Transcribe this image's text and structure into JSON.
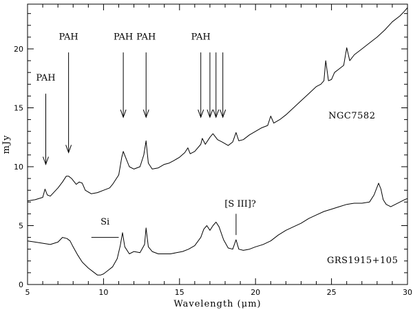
{
  "chart_data": {
    "type": "line",
    "xlabel": "Wavelength (μm)",
    "ylabel": "mJy",
    "xlim": [
      5,
      30
    ],
    "ylim": [
      0,
      23.8
    ],
    "xticks": [
      5,
      10,
      15,
      20,
      25,
      30
    ],
    "yticks": [
      0,
      5,
      10,
      15,
      20
    ],
    "grid": false,
    "series": [
      {
        "name": "NGC7582",
        "x": [
          5.0,
          5.5,
          6.0,
          6.15,
          6.3,
          6.5,
          7.0,
          7.3,
          7.55,
          7.7,
          7.9,
          8.2,
          8.4,
          8.6,
          8.8,
          9.2,
          9.6,
          10.0,
          10.4,
          10.6,
          11.0,
          11.2,
          11.3,
          11.45,
          11.7,
          12.0,
          12.4,
          12.65,
          12.8,
          12.95,
          13.2,
          13.6,
          14.0,
          14.3,
          14.6,
          15.0,
          15.35,
          15.55,
          15.7,
          16.0,
          16.4,
          16.5,
          16.7,
          17.0,
          17.2,
          17.5,
          17.8,
          18.2,
          18.5,
          18.72,
          18.9,
          19.2,
          19.6,
          20.0,
          20.4,
          20.8,
          21.0,
          21.2,
          21.6,
          22.0,
          22.5,
          23.0,
          23.5,
          24.0,
          24.3,
          24.5,
          24.62,
          24.8,
          25.0,
          25.2,
          25.5,
          25.8,
          26.0,
          26.2,
          26.5,
          27.0,
          27.5,
          28.0,
          28.5,
          29.0,
          29.5,
          29.8,
          30.0
        ],
        "y": [
          7.1,
          7.2,
          7.4,
          8.1,
          7.6,
          7.5,
          8.2,
          8.7,
          9.2,
          9.2,
          9.0,
          8.5,
          8.7,
          8.6,
          8.0,
          7.7,
          7.8,
          8.0,
          8.2,
          8.5,
          9.3,
          10.8,
          11.3,
          10.8,
          10.0,
          9.8,
          10.0,
          11.0,
          12.2,
          10.3,
          9.8,
          9.9,
          10.2,
          10.3,
          10.5,
          10.8,
          11.2,
          11.6,
          11.1,
          11.3,
          11.9,
          12.4,
          11.9,
          12.5,
          12.8,
          12.3,
          12.1,
          11.8,
          12.1,
          12.9,
          12.2,
          12.3,
          12.7,
          13.0,
          13.3,
          13.5,
          14.3,
          13.7,
          14.0,
          14.4,
          15.0,
          15.6,
          16.2,
          16.8,
          17.0,
          17.3,
          19.0,
          17.3,
          17.4,
          18.0,
          18.3,
          18.6,
          20.1,
          19.0,
          19.5,
          20.0,
          20.5,
          21.0,
          21.6,
          22.3,
          22.8,
          23.2,
          23.5
        ]
      },
      {
        "name": "GRS1915+105",
        "x": [
          5.0,
          5.5,
          6.0,
          6.5,
          7.0,
          7.3,
          7.6,
          7.8,
          8.0,
          8.3,
          8.6,
          9.0,
          9.3,
          9.6,
          9.8,
          10.0,
          10.3,
          10.6,
          10.9,
          11.1,
          11.25,
          11.4,
          11.7,
          12.0,
          12.4,
          12.7,
          12.8,
          12.95,
          13.2,
          13.6,
          14.0,
          14.4,
          14.8,
          15.2,
          15.6,
          16.0,
          16.4,
          16.6,
          16.8,
          17.0,
          17.2,
          17.4,
          17.6,
          17.9,
          18.2,
          18.5,
          18.72,
          18.9,
          19.2,
          19.6,
          20.0,
          20.5,
          21.0,
          21.5,
          22.0,
          22.5,
          23.0,
          23.5,
          24.0,
          24.5,
          25.0,
          25.5,
          26.0,
          26.5,
          27.0,
          27.5,
          27.8,
          28.1,
          28.25,
          28.4,
          28.6,
          28.9,
          29.2,
          29.5,
          29.8,
          30.0
        ],
        "y": [
          3.7,
          3.6,
          3.5,
          3.4,
          3.6,
          4.0,
          3.9,
          3.7,
          3.2,
          2.5,
          1.9,
          1.4,
          1.1,
          0.8,
          0.8,
          0.9,
          1.2,
          1.5,
          2.2,
          3.3,
          4.4,
          3.2,
          2.6,
          2.8,
          2.7,
          3.4,
          4.8,
          3.2,
          2.8,
          2.6,
          2.6,
          2.6,
          2.7,
          2.8,
          3.0,
          3.3,
          4.0,
          4.7,
          5.0,
          4.6,
          5.0,
          5.3,
          4.9,
          3.8,
          3.1,
          3.0,
          3.8,
          3.0,
          2.9,
          3.0,
          3.2,
          3.4,
          3.7,
          4.2,
          4.6,
          4.9,
          5.2,
          5.6,
          5.9,
          6.2,
          6.4,
          6.6,
          6.8,
          6.9,
          6.9,
          7.0,
          7.6,
          8.6,
          8.1,
          7.2,
          6.8,
          6.6,
          6.8,
          7.0,
          7.2,
          7.3
        ]
      }
    ],
    "annotations": [
      {
        "kind": "arrow",
        "label": "PAH",
        "x": 6.2,
        "y_top": 16.2,
        "y_tip": 10.2,
        "label_y": 17.3
      },
      {
        "kind": "arrow",
        "label": "PAH",
        "x": 7.7,
        "y_top": 19.7,
        "y_tip": 11.2,
        "label_y": 20.8
      },
      {
        "kind": "arrow",
        "label": "PAH",
        "x": 11.3,
        "y_top": 19.7,
        "y_tip": 14.2,
        "label_y": 20.8
      },
      {
        "kind": "arrow",
        "label": "PAH",
        "x": 12.8,
        "y_top": 19.7,
        "y_tip": 14.2,
        "label_y": 20.8
      },
      {
        "kind": "arrow",
        "label": "PAH",
        "x": 16.4,
        "y_top": 19.7,
        "y_tip": 14.2,
        "label_y": 20.8
      },
      {
        "kind": "arrow",
        "label": "",
        "x": 17.0,
        "y_top": 19.7,
        "y_tip": 14.2
      },
      {
        "kind": "arrow",
        "label": "",
        "x": 17.4,
        "y_top": 19.7,
        "y_tip": 14.2
      },
      {
        "kind": "arrow",
        "label": "",
        "x": 17.85,
        "y_top": 19.7,
        "y_tip": 14.2
      },
      {
        "kind": "hline",
        "label": "Si",
        "x1": 9.2,
        "x2": 11.0,
        "y": 4.0,
        "label_x": 10.1,
        "label_y": 5.1
      },
      {
        "kind": "vline",
        "label": "[S III]?",
        "x": 18.72,
        "y1": 4.2,
        "y2": 6.0,
        "label_x": 19.0,
        "label_y": 6.6
      }
    ],
    "series_labels": [
      {
        "text": "NGC7582",
        "x": 24.8,
        "y": 14.1
      },
      {
        "text": "GRS1915+105",
        "x": 24.7,
        "y": 1.8
      }
    ]
  }
}
